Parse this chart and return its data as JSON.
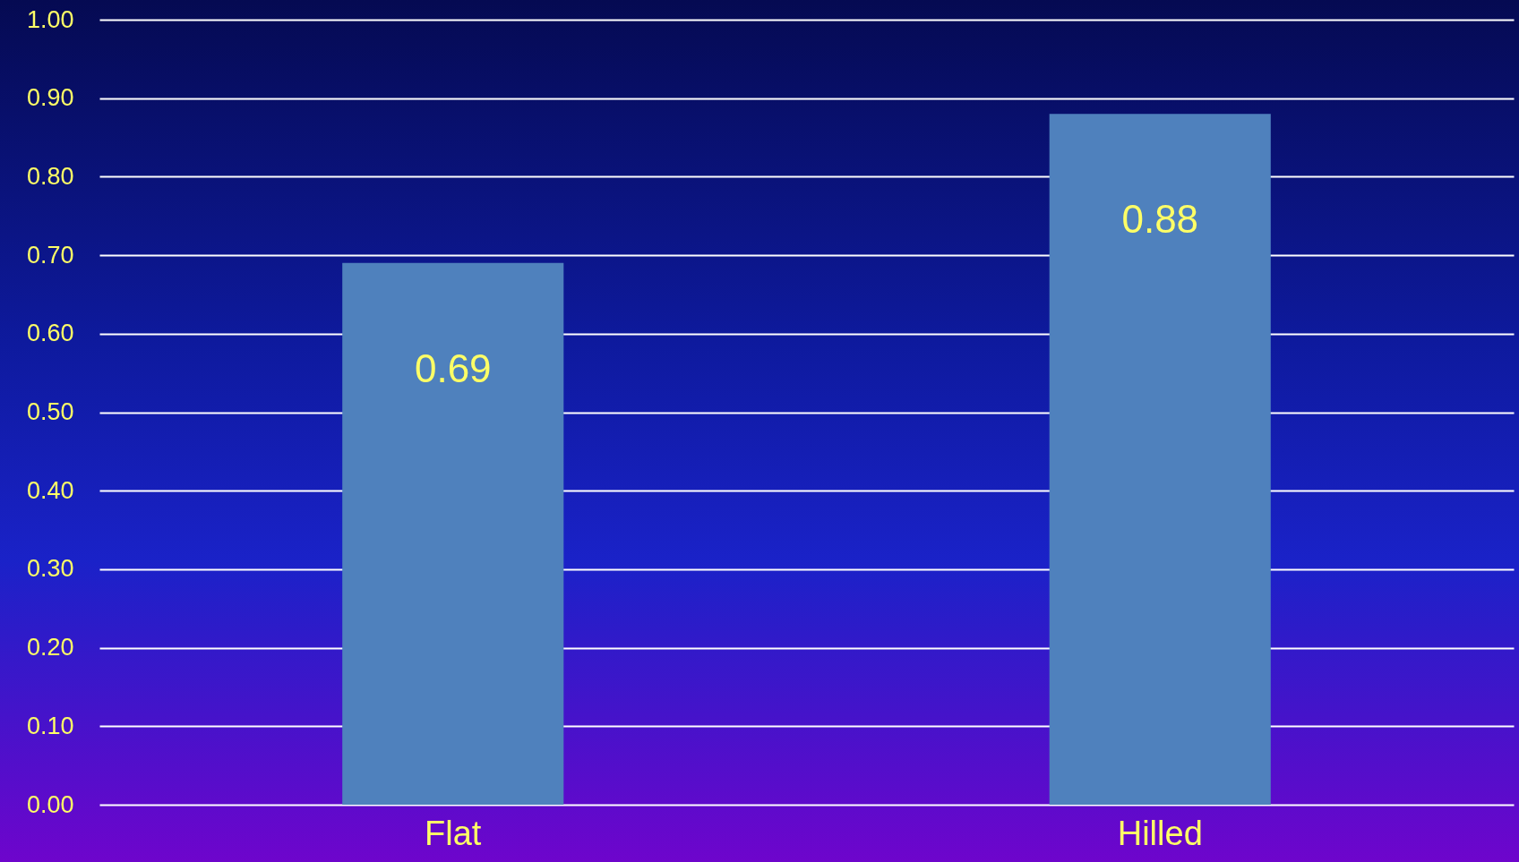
{
  "chart_data": {
    "type": "bar",
    "categories": [
      "Flat",
      "Hilled"
    ],
    "values": [
      0.69,
      0.88
    ],
    "color": "#4f81bd",
    "ylim": [
      0,
      1
    ],
    "yticks": [
      {
        "value": 0,
        "label": "0.00"
      },
      {
        "value": 0.1,
        "label": "0.10"
      },
      {
        "value": 0.2,
        "label": "0.20"
      },
      {
        "value": 0.3,
        "label": "0.30"
      },
      {
        "value": 0.4,
        "label": "0.40"
      },
      {
        "value": 0.5,
        "label": "0.50"
      },
      {
        "value": 0.6,
        "label": "0.60"
      },
      {
        "value": 0.7,
        "label": "0.70"
      },
      {
        "value": 0.8,
        "label": "0.80"
      },
      {
        "value": 0.9,
        "label": "0.90"
      },
      {
        "value": 1,
        "label": "1.00"
      }
    ],
    "grid": true,
    "data_labels": true
  }
}
